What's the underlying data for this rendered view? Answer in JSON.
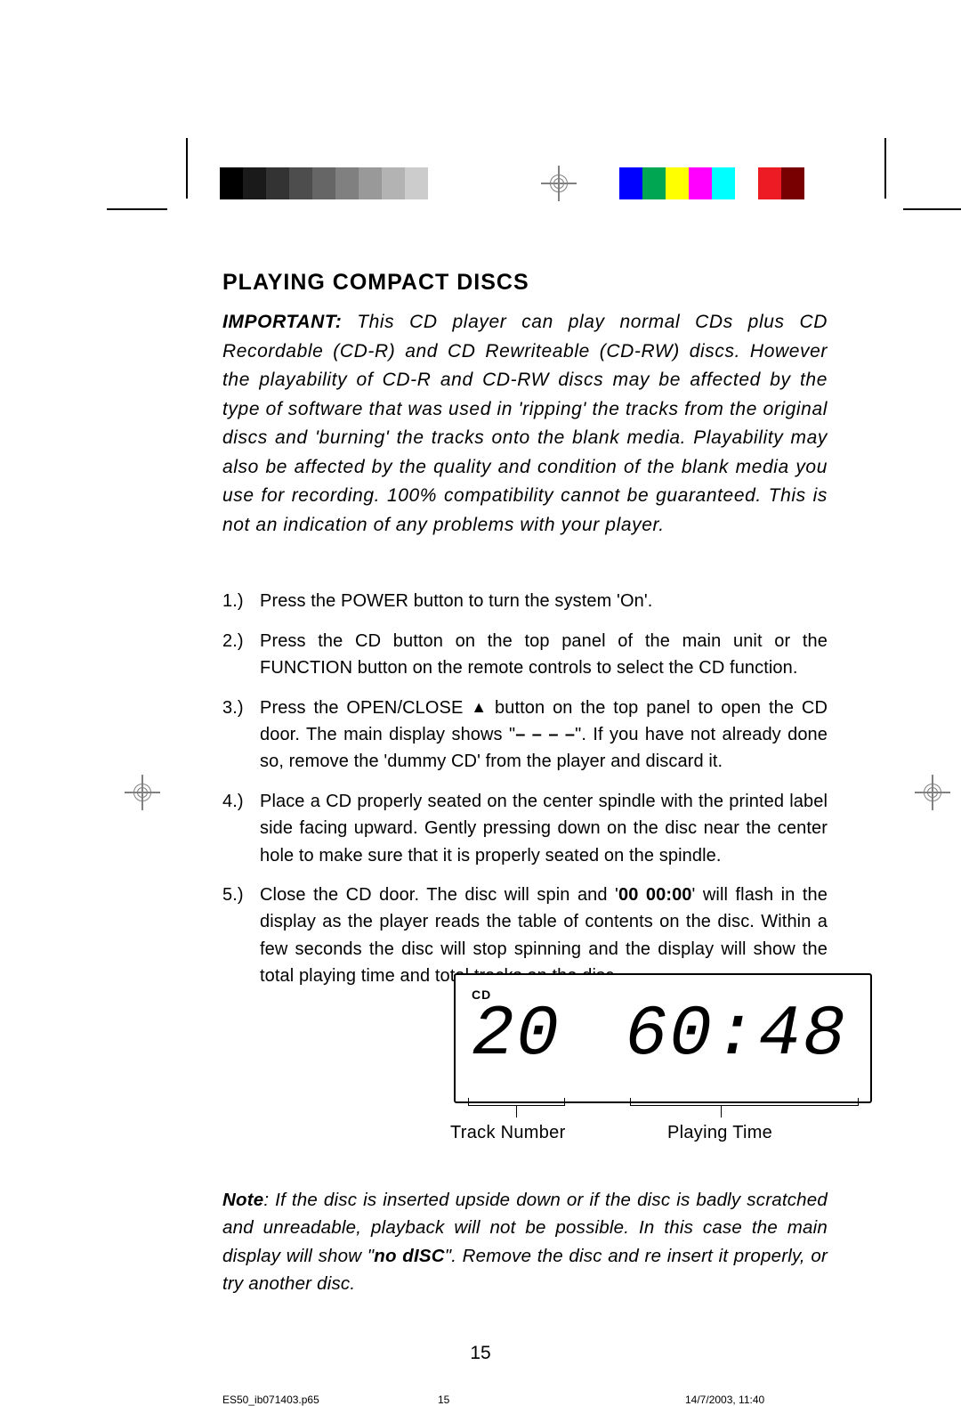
{
  "colorbar": {
    "left_start": 247,
    "swatch_width": 26,
    "left_colors": [
      "#000000",
      "#1a1a1a",
      "#333333",
      "#4d4d4d",
      "#666666",
      "#808080",
      "#999999",
      "#b3b3b3",
      "#cccccc",
      "#ffffff"
    ],
    "right_start": 696,
    "right_colors": [
      "#0000ff",
      "#00a651",
      "#ffff00",
      "#ff00ff",
      "#00ffff",
      "#ffffff",
      "#ed1c24",
      "#790000"
    ]
  },
  "heading": "PLAYING COMPACT DISCS",
  "important": {
    "label": "IMPORTANT:",
    "text": " This CD player can play normal CDs plus CD Recordable (CD-R) and CD Rewriteable (CD-RW) discs. However the playability of CD-R and CD-RW discs may be affected by the type of software that was used in 'ripping' the tracks from the original discs and 'burning' the tracks onto the blank media. Playability may also be affected by the quality and condition of the blank media you use for recording. 100% compatibility cannot be guaranteed. This is not an indication of any problems with your player."
  },
  "steps": {
    "s1": "Press the POWER button to turn the system 'On'.",
    "s2": "Press the CD button on the top panel of the main unit or the FUNCTION button on the remote controls to select the CD function.",
    "s3a": "Press the OPEN/CLOSE ",
    "eject_glyph": "▲",
    "s3b": " button on the top panel to open the CD door. The main display shows \"",
    "s3dash": "– – – –",
    "s3c": "\". If you have not already done so, remove the 'dummy CD' from the player and discard it.",
    "s4": "Place a CD properly seated on the center spindle with the printed label side facing upward. Gently pressing down on the disc near the center hole to make sure that it is properly seated on the spindle.",
    "s5a": "Close the CD door. The disc will spin and '",
    "s5bold": "00 00:00",
    "s5b": "' will flash in the display as the player reads the table of contents on the disc. Within a few seconds the disc will stop spinning and the display will show the total playing time and total tracks on the disc."
  },
  "lcd": {
    "cd_label": "CD",
    "track": "20",
    "time": "60:48",
    "track_label": "Track Number",
    "time_label": "Playing Time"
  },
  "note": {
    "label": "Note",
    "t1": ": If the disc is inserted upside down or if the disc is badly scratched and unreadable, playback will not be possible. In this case the main display will show \"",
    "nodisc": "no dISC",
    "t2": "\". Remove the disc and re insert it properly, or try another disc."
  },
  "page_number": "15",
  "footer": {
    "filename": "ES50_ib071403.p65",
    "page": "15",
    "datetime": "14/7/2003, 11:40"
  }
}
